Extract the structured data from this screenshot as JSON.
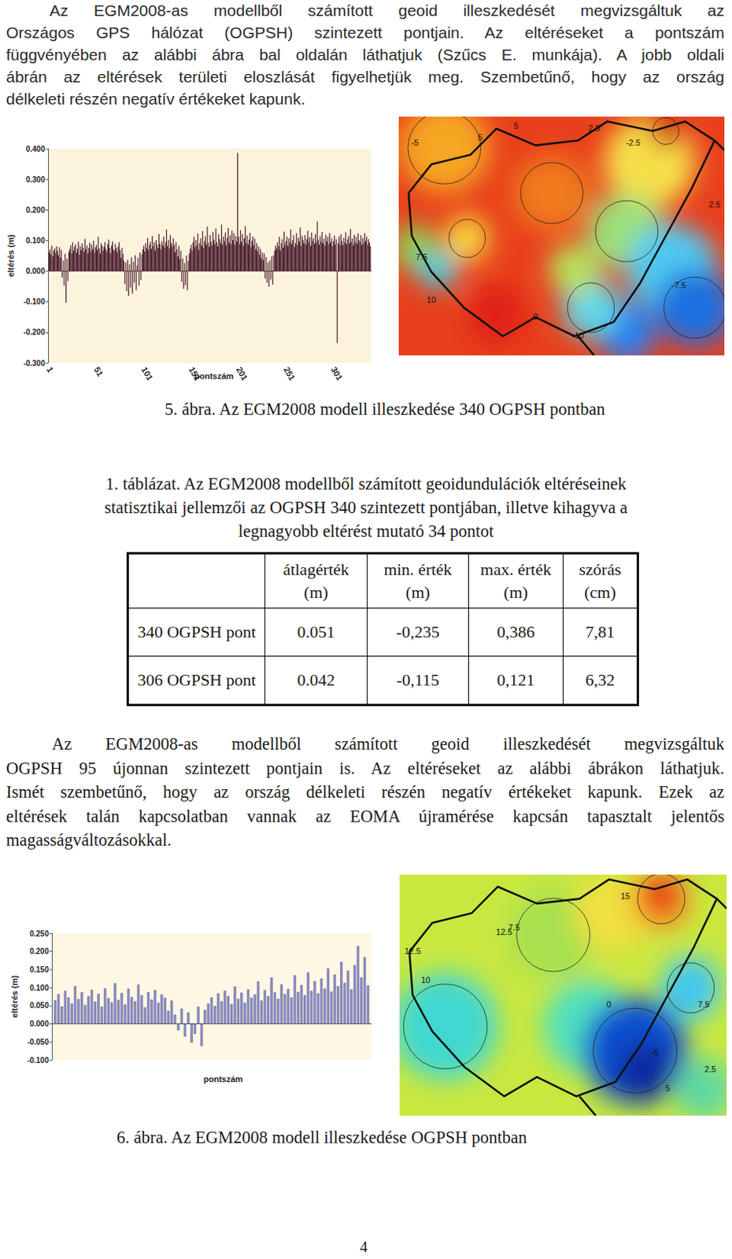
{
  "document": {
    "paragraph_1": [
      "Az EGM2008-as modellből számított geoid illeszkedését megvizsgáltuk az",
      "Országos GPS hálózat (OGPSH) szintezett pontjain. Az eltéréseket a pontszám",
      "függvényében az alábbi ábra bal oldalán láthatjuk (Szűcs E. munkája). A jobb oldali",
      "ábrán az eltérések területi eloszlását figyelhetjük meg. Szembetűnő, hogy az ország",
      "délkeleti részén negatív értékeket kapunk."
    ],
    "figure_5": {
      "caption": "5. ábra. Az EGM2008 modell illeszkedése 340 OGPSH pontban",
      "map_labels": [
        "-5",
        "5",
        "2.5",
        "-2.5",
        "7.5",
        "10",
        "-10",
        "0",
        "2.5",
        "-7.5",
        "5"
      ]
    },
    "table": {
      "caption": [
        "1. táblázat. Az EGM2008 modellből számított geoidundulációk eltéréseinek",
        "statisztikai jellemzői az OGPSH 340 szintezett pontjában, illetve kihagyva a",
        "legnagyobb eltérést mutató 34 pontot"
      ],
      "header": [
        "átlagérték (m)",
        "min. érték (m)",
        "max. érték (m)",
        "szórás (cm)"
      ],
      "rows": [
        [
          "340 OGPSH pont",
          "0.051",
          "-0,235",
          "0,386",
          "7,81"
        ],
        [
          "306 OGPSH pont",
          "0.042",
          "-0,115",
          "0,121",
          "6,32"
        ]
      ]
    },
    "paragraph_2": [
      "Az EGM2008-as modellből számított geoid illeszkedését megvizsgáltuk",
      "OGPSH 95 újonnan szintezett pontjain is. Az eltéréseket az alábbi ábrákon láthatjuk.",
      "Ismét szembetűnő, hogy az ország délkeleti részén negatív értékeket kapunk. Ezek az",
      "eltérések talán kapcsolatban vannak az EOMA újramérése kapcsán tapasztalt jelentős",
      "magasságváltozásokkal."
    ],
    "figure_6": {
      "caption": "6. ábra. Az EGM2008 modell illeszkedése OGPSH pontban",
      "map_labels": [
        "12.5",
        "10",
        "7.5",
        "15",
        "12.5",
        "2.5",
        "5",
        "7.5",
        "0",
        "-5"
      ]
    },
    "page_number": "4"
  },
  "chart_data": [
    {
      "type": "bar",
      "x_label": "pontszám",
      "y_label": "eltérés (m)",
      "color": "#4a1c2c",
      "grid": false,
      "xlim": [
        0,
        341
      ],
      "xticks": [
        1,
        51,
        101,
        151,
        201,
        251,
        301
      ],
      "ylim": [
        -0.3,
        0.4
      ],
      "yticks": [
        {
          "value": -0.3,
          "label": "-0.300"
        },
        {
          "value": -0.2,
          "label": "-0.200"
        },
        {
          "value": -0.1,
          "label": "-0.100"
        },
        {
          "value": 0,
          "label": "0.000"
        },
        {
          "value": 0.1,
          "label": "0.100"
        },
        {
          "value": 0.2,
          "label": "0.200"
        },
        {
          "value": 0.3,
          "label": "0.300"
        },
        {
          "value": 0.4,
          "label": "0.400"
        }
      ],
      "x": [
        1,
        2,
        3,
        4,
        5,
        6,
        7,
        8,
        9,
        10,
        11,
        12,
        13,
        14,
        15,
        16,
        17,
        18,
        19,
        20,
        21,
        22,
        23,
        24,
        25,
        26,
        27,
        28,
        29,
        30,
        31,
        32,
        33,
        34,
        35,
        36,
        37,
        38,
        39,
        40,
        41,
        42,
        43,
        44,
        45,
        46,
        47,
        48,
        49,
        50,
        51,
        52,
        53,
        54,
        55,
        56,
        57,
        58,
        59,
        60,
        61,
        62,
        63,
        64,
        65,
        66,
        67,
        68,
        69,
        70,
        71,
        72,
        73,
        74,
        75,
        76,
        77,
        78,
        79,
        80,
        81,
        82,
        83,
        84,
        85,
        86,
        87,
        88,
        89,
        90,
        91,
        92,
        93,
        94,
        95,
        96,
        97,
        98,
        99,
        100,
        101,
        102,
        103,
        104,
        105,
        106,
        107,
        108,
        109,
        110,
        111,
        112,
        113,
        114,
        115,
        116,
        117,
        118,
        119,
        120,
        121,
        122,
        123,
        124,
        125,
        126,
        127,
        128,
        129,
        130,
        131,
        132,
        133,
        134,
        135,
        136,
        137,
        138,
        139,
        140,
        141,
        142,
        143,
        144,
        145,
        146,
        147,
        148,
        149,
        150,
        151,
        152,
        153,
        154,
        155,
        156,
        157,
        158,
        159,
        160,
        161,
        162,
        163,
        164,
        165,
        166,
        167,
        168,
        169,
        170,
        171,
        172,
        173,
        174,
        175,
        176,
        177,
        178,
        179,
        180,
        181,
        182,
        183,
        184,
        185,
        186,
        187,
        188,
        189,
        190,
        191,
        192,
        193,
        194,
        195,
        196,
        197,
        198,
        199,
        200,
        201,
        202,
        203,
        204,
        205,
        206,
        207,
        208,
        209,
        210,
        211,
        212,
        213,
        214,
        215,
        216,
        217,
        218,
        219,
        220,
        221,
        222,
        223,
        224,
        225,
        226,
        227,
        228,
        229,
        230,
        231,
        232,
        233,
        234,
        235,
        236,
        237,
        238,
        239,
        240,
        241,
        242,
        243,
        244,
        245,
        246,
        247,
        248,
        249,
        250,
        251,
        252,
        253,
        254,
        255,
        256,
        257,
        258,
        259,
        260,
        261,
        262,
        263,
        264,
        265,
        266,
        267,
        268,
        269,
        270,
        271,
        272,
        273,
        274,
        275,
        276,
        277,
        278,
        279,
        280,
        281,
        282,
        283,
        284,
        285,
        286,
        287,
        288,
        289,
        290,
        291,
        292,
        293,
        294,
        295,
        296,
        297,
        298,
        299,
        300,
        301,
        302,
        303,
        304,
        305,
        306,
        307,
        308,
        309,
        310,
        311,
        312,
        313,
        314,
        315,
        316,
        317,
        318,
        319,
        320,
        321,
        322,
        323,
        324,
        325,
        326,
        327,
        328,
        329,
        330,
        331,
        332,
        333,
        334,
        335,
        336,
        337,
        338,
        339,
        340
      ],
      "values": [
        0.062,
        0.071,
        0.055,
        0.083,
        0.048,
        0.067,
        0.074,
        0.059,
        0.081,
        0.066,
        0.052,
        0.078,
        0.044,
        0.069,
        -0.021,
        0.035,
        -0.048,
        0.057,
        -0.103,
        0.041,
        -0.032,
        0.063,
        0.072,
        0.085,
        0.058,
        0.094,
        0.067,
        0.079,
        0.088,
        0.061,
        0.073,
        0.096,
        0.054,
        0.082,
        0.069,
        0.091,
        0.077,
        0.063,
        0.105,
        0.071,
        0.084,
        0.058,
        0.076,
        0.093,
        0.065,
        0.087,
        0.072,
        0.099,
        0.061,
        0.078,
        0.086,
        0.069,
        0.112,
        0.074,
        0.058,
        0.091,
        0.083,
        0.067,
        0.079,
        0.095,
        0.072,
        0.064,
        0.088,
        0.103,
        0.076,
        0.059,
        0.084,
        0.097,
        0.071,
        0.066,
        0.089,
        0.075,
        0.062,
        0.081,
        0.094,
        0.068,
        0.043,
        0.077,
        0.056,
        0.034,
        -0.042,
        0.028,
        -0.065,
        0.037,
        -0.081,
        0.022,
        -0.054,
        0.045,
        -0.073,
        0.031,
        -0.038,
        0.052,
        -0.062,
        0.018,
        0.044,
        -0.047,
        0.061,
        -0.029,
        0.055,
        0.072,
        0.083,
        0.064,
        0.091,
        0.075,
        0.108,
        0.069,
        0.086,
        0.097,
        0.073,
        0.115,
        0.081,
        0.094,
        0.068,
        0.102,
        0.087,
        0.076,
        0.121,
        0.089,
        0.072,
        0.098,
        0.084,
        0.113,
        0.077,
        0.095,
        0.136,
        0.082,
        0.101,
        0.074,
        0.118,
        0.091,
        0.079,
        0.107,
        0.086,
        0.062,
        0.095,
        0.071,
        0.048,
        0.083,
        0.039,
        0.066,
        -0.035,
        0.042,
        -0.058,
        0.027,
        -0.046,
        0.051,
        -0.062,
        0.033,
        0.058,
        0.074,
        0.086,
        0.067,
        0.094,
        0.112,
        0.078,
        0.101,
        0.085,
        0.123,
        0.069,
        0.092,
        0.107,
        0.083,
        0.131,
        0.076,
        0.098,
        0.114,
        0.087,
        0.145,
        0.093,
        0.079,
        0.118,
        0.096,
        0.084,
        0.127,
        0.102,
        0.088,
        0.139,
        0.095,
        0.081,
        0.121,
        0.104,
        0.092,
        0.152,
        0.087,
        0.113,
        0.098,
        0.126,
        0.084,
        0.109,
        0.141,
        0.093,
        0.117,
        0.088,
        0.132,
        0.101,
        0.124,
        0.086,
        0.115,
        0.097,
        0.386,
        0.112,
        0.089,
        0.134,
        0.096,
        0.121,
        0.083,
        0.108,
        0.147,
        0.092,
        0.116,
        0.087,
        0.103,
        0.125,
        0.078,
        0.099,
        0.113,
        0.084,
        0.106,
        0.071,
        0.092,
        0.065,
        0.081,
        0.054,
        0.073,
        0.042,
        0.061,
        0.037,
        0.058,
        -0.024,
        0.046,
        -0.038,
        0.029,
        -0.051,
        0.035,
        -0.027,
        0.048,
        -0.044,
        0.052,
        0.067,
        0.084,
        0.073,
        0.095,
        0.081,
        0.112,
        0.068,
        0.091,
        0.104,
        0.077,
        0.129,
        0.086,
        0.098,
        0.113,
        0.082,
        0.107,
        0.094,
        0.136,
        0.088,
        0.101,
        0.117,
        0.079,
        0.092,
        0.124,
        0.086,
        0.109,
        0.097,
        0.143,
        0.083,
        0.115,
        0.102,
        0.091,
        0.118,
        0.087,
        0.105,
        0.132,
        0.094,
        0.111,
        0.083,
        0.126,
        0.099,
        0.108,
        0.089,
        0.121,
        0.095,
        0.162,
        0.103,
        0.087,
        0.114,
        0.096,
        0.128,
        0.091,
        0.106,
        0.083,
        0.119,
        0.097,
        0.112,
        0.088,
        0.125,
        0.094,
        0.107,
        0.082,
        0.098,
        0.116,
        0.087,
        0.105,
        -0.235,
        0.092,
        0.113,
        0.086,
        0.121,
        0.099,
        0.084,
        0.109,
        0.093,
        0.127,
        0.088,
        0.104,
        0.115,
        0.091,
        0.138,
        0.096,
        0.107,
        0.085,
        0.119,
        0.094,
        0.112,
        0.089,
        0.123,
        0.101,
        0.095,
        0.117,
        0.086,
        0.108,
        0.092,
        0.124,
        0.099,
        0.113,
        0.087,
        0.105,
        0.094,
        0.081
      ]
    },
    {
      "type": "bar",
      "x_label": "pontszám",
      "y_label": "eltérés (m)",
      "color": "#8c8fd0",
      "grid": false,
      "tick_labels": "y",
      "xlim": [
        0,
        96
      ],
      "ylim": [
        -0.1,
        0.25
      ],
      "yticks": [
        {
          "value": -0.1,
          "label": "-0.100"
        },
        {
          "value": -0.05,
          "label": "-0.050"
        },
        {
          "value": 0,
          "label": "0.000"
        },
        {
          "value": 0.05,
          "label": "0.050"
        },
        {
          "value": 0.1,
          "label": "0.100"
        },
        {
          "value": 0.15,
          "label": "0.150"
        },
        {
          "value": 0.2,
          "label": "0.200"
        },
        {
          "value": 0.25,
          "label": "0.250"
        }
      ],
      "x": [
        1,
        2,
        3,
        4,
        5,
        6,
        7,
        8,
        9,
        10,
        11,
        12,
        13,
        14,
        15,
        16,
        17,
        18,
        19,
        20,
        21,
        22,
        23,
        24,
        25,
        26,
        27,
        28,
        29,
        30,
        31,
        32,
        33,
        34,
        35,
        36,
        37,
        38,
        39,
        40,
        41,
        42,
        43,
        44,
        45,
        46,
        47,
        48,
        49,
        50,
        51,
        52,
        53,
        54,
        55,
        56,
        57,
        58,
        59,
        60,
        61,
        62,
        63,
        64,
        65,
        66,
        67,
        68,
        69,
        70,
        71,
        72,
        73,
        74,
        75,
        76,
        77,
        78,
        79,
        80,
        81,
        82,
        83,
        84,
        85,
        86,
        87,
        88,
        89,
        90,
        91,
        92,
        93,
        94,
        95
      ],
      "values": [
        0.065,
        0.082,
        0.048,
        0.091,
        0.073,
        0.056,
        0.104,
        0.068,
        0.087,
        0.052,
        0.076,
        0.094,
        0.061,
        0.083,
        0.047,
        0.098,
        0.071,
        0.059,
        0.112,
        0.066,
        0.085,
        0.053,
        0.097,
        0.074,
        0.062,
        0.108,
        0.079,
        0.045,
        0.088,
        0.067,
        0.093,
        0.058,
        0.081,
        0.072,
        0.036,
        0.064,
        0.025,
        -0.018,
        0.042,
        -0.035,
        0.031,
        -0.052,
        -0.028,
        0.047,
        -0.061,
        0.038,
        0.056,
        0.073,
        0.049,
        0.084,
        0.062,
        0.091,
        0.077,
        0.054,
        0.103,
        0.069,
        0.086,
        0.058,
        0.095,
        0.072,
        0.081,
        0.117,
        0.064,
        0.093,
        0.076,
        0.128,
        0.087,
        0.069,
        0.109,
        0.082,
        0.096,
        0.073,
        0.134,
        0.088,
        0.107,
        0.079,
        0.142,
        0.091,
        0.118,
        0.084,
        0.125,
        0.097,
        0.153,
        0.089,
        0.136,
        0.104,
        0.171,
        0.113,
        0.147,
        0.095,
        0.162,
        0.215,
        0.128,
        0.184,
        0.106
      ]
    }
  ]
}
